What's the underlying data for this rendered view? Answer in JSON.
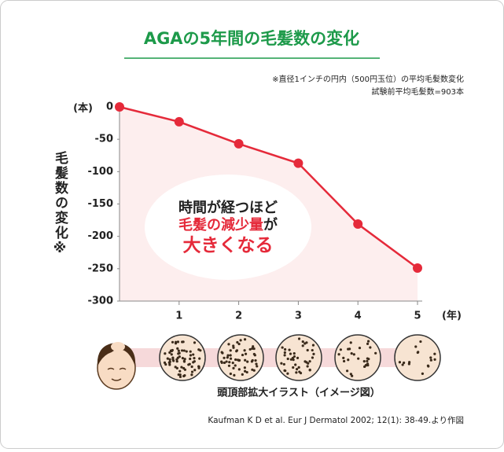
{
  "chart_data": {
    "type": "line",
    "title": "AGAの5年間の毛髪数の変化",
    "notes": [
      "※直径1インチの円内（500円玉位）の平均毛髪数変化",
      "試験前平均毛髪数=903本"
    ],
    "y_unit": "(本)",
    "x_unit": "(年)",
    "ylabel": "毛髪数の変化※",
    "x": [
      0,
      1,
      2,
      3,
      4,
      5
    ],
    "xlim": [
      0,
      5
    ],
    "xticks": [
      1,
      2,
      3,
      4,
      5
    ],
    "ylim": [
      -300,
      0
    ],
    "yticks": [
      0,
      -50,
      -100,
      -150,
      -200,
      -250,
      -300
    ],
    "series": [
      {
        "color": "#e52a3a",
        "values": [
          0,
          -23,
          -57,
          -87,
          -181,
          -249
        ]
      }
    ],
    "callout": {
      "line1": "時間が経つほど",
      "line2_red": "毛髪の減少量",
      "line2_rest": "が",
      "line3": "大きくなる"
    },
    "image_caption": "頭頂部拡大イラスト（イメージ図）",
    "source": "Kaufman K D et al. Eur J Dermatol 2002; 12(1): 38-49.より作図"
  }
}
